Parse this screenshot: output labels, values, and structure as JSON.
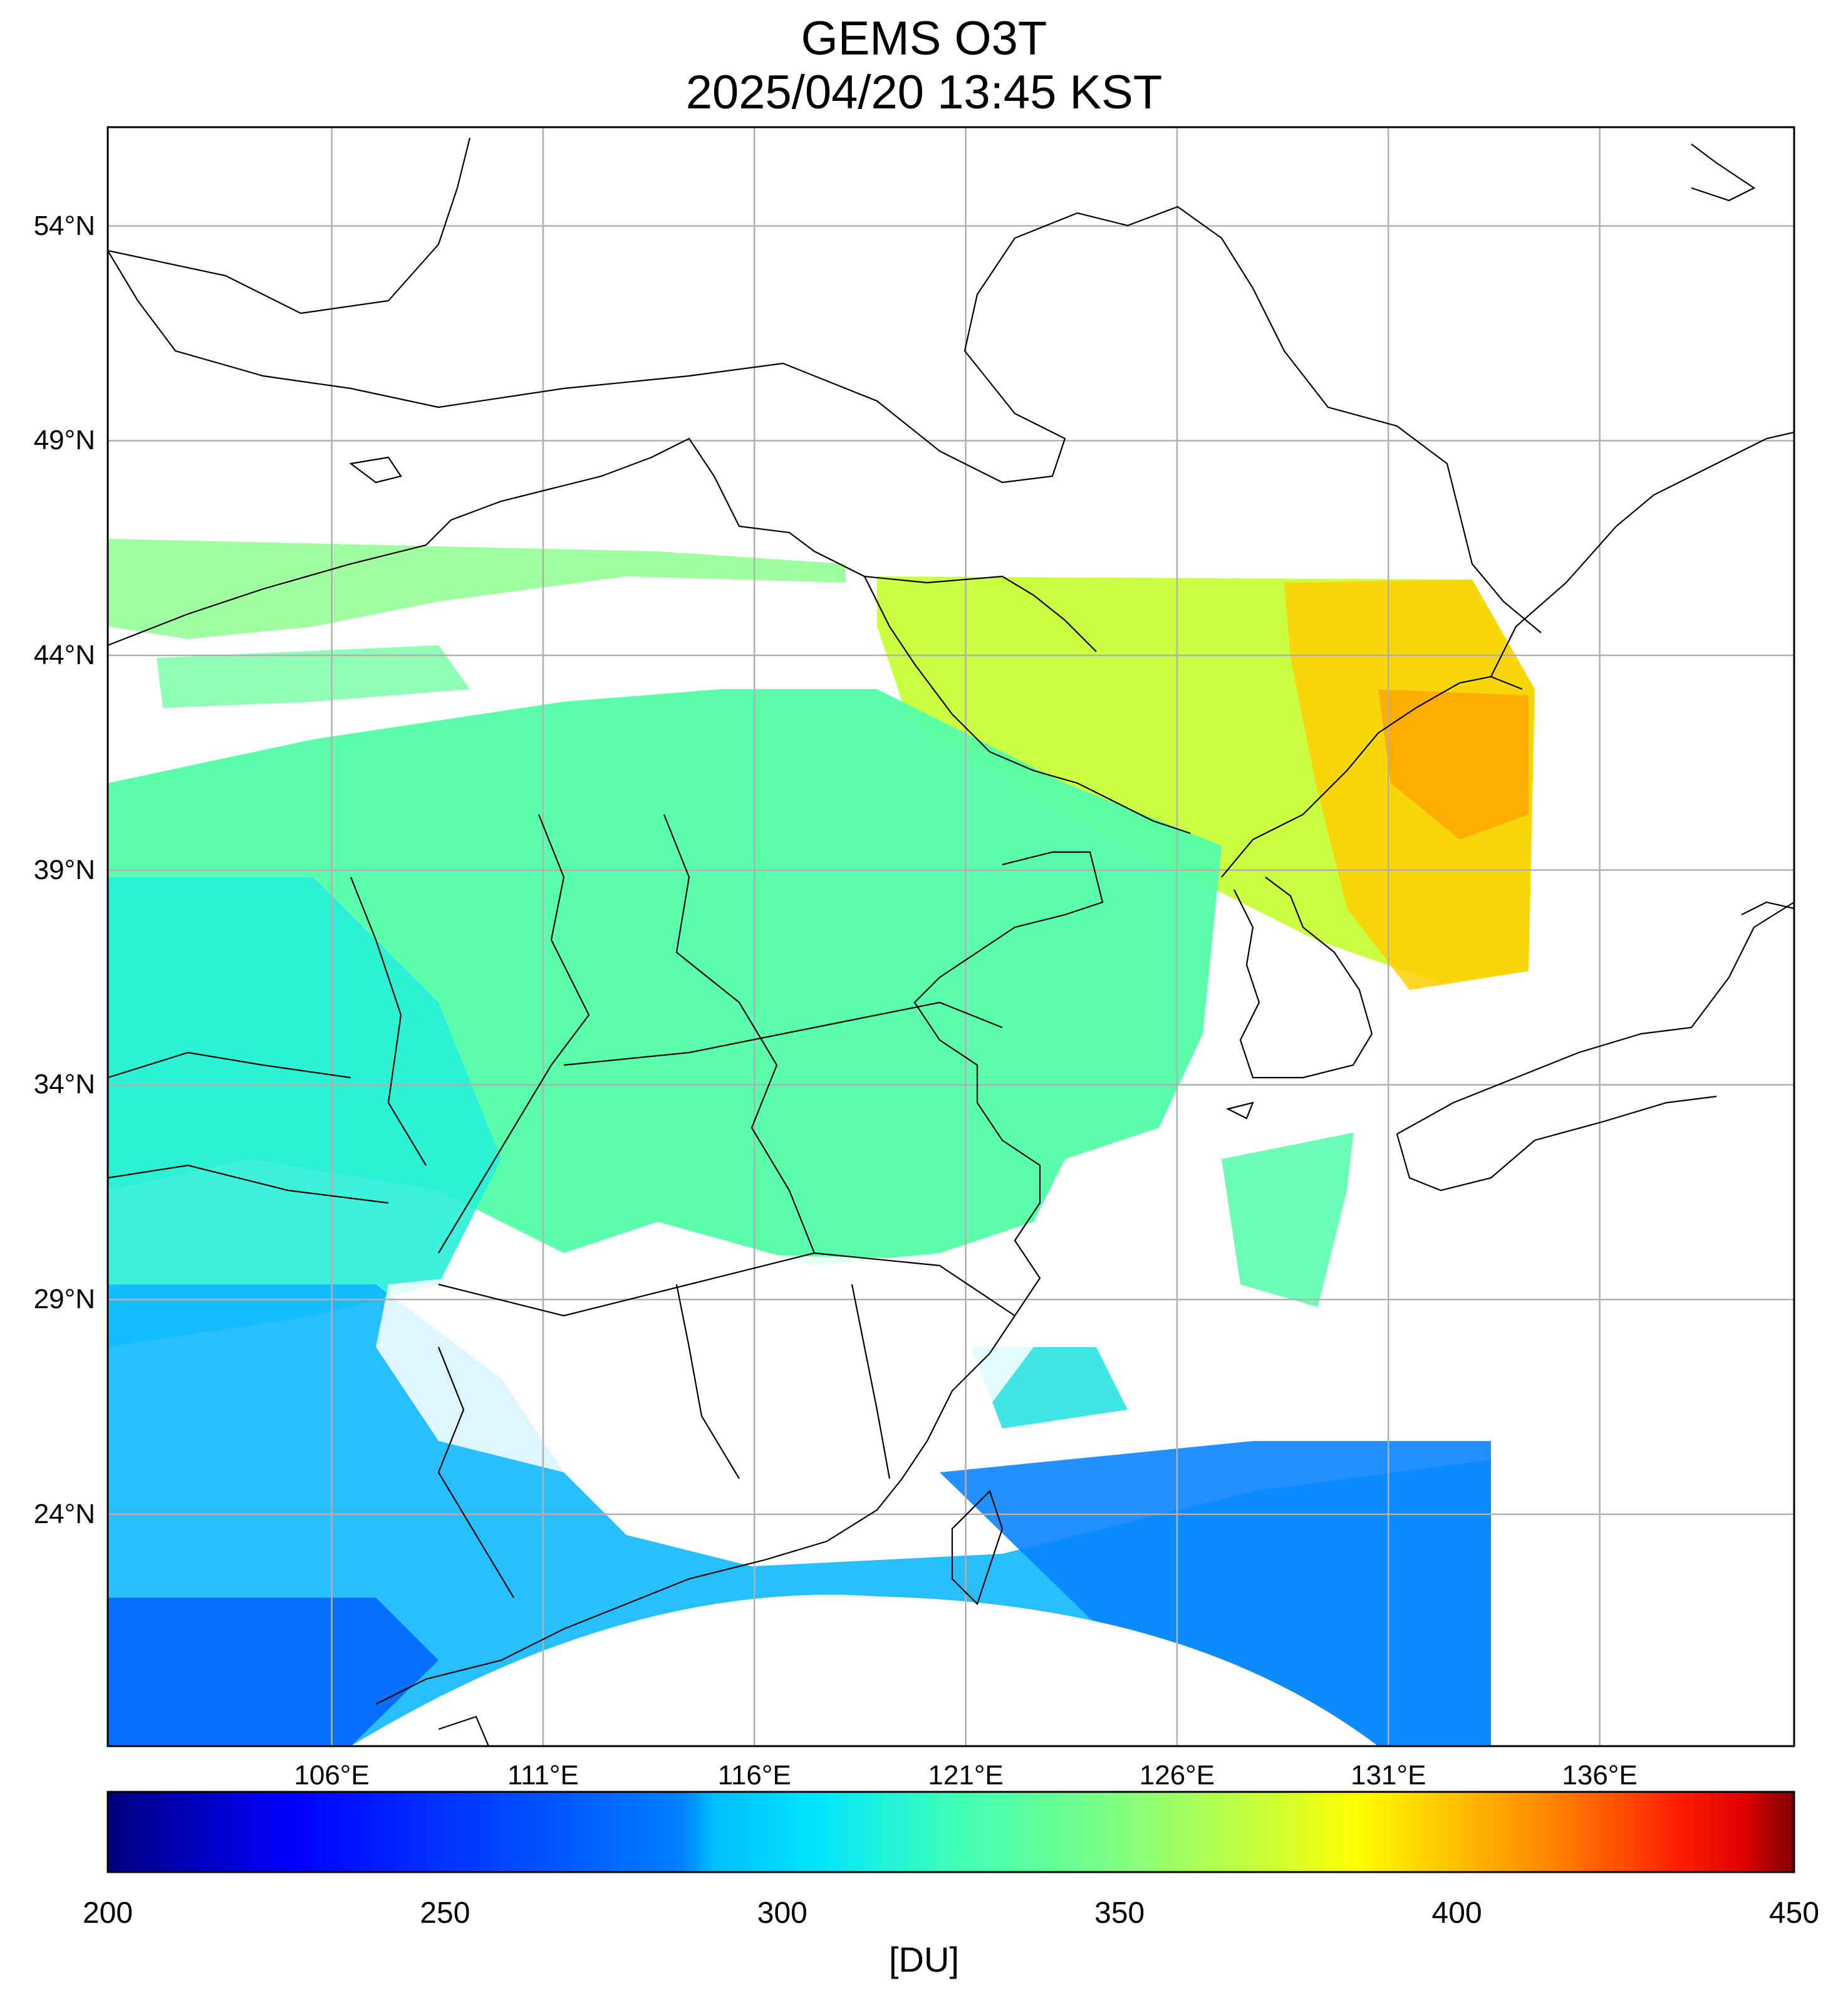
{
  "title": {
    "line1": "GEMS O3T",
    "line2": "2025/04/20 13:45 KST"
  },
  "map": {
    "lon_range": [
      100.7,
      140.6
    ],
    "lat_range": [
      18.6,
      56.3
    ],
    "lat_ticks": [
      {
        "value": 54,
        "label": "54°N"
      },
      {
        "value": 49,
        "label": "49°N"
      },
      {
        "value": 44,
        "label": "44°N"
      },
      {
        "value": 39,
        "label": "39°N"
      },
      {
        "value": 34,
        "label": "34°N"
      },
      {
        "value": 29,
        "label": "29°N"
      },
      {
        "value": 24,
        "label": "24°N"
      }
    ],
    "lon_ticks": [
      {
        "value": 106,
        "label": "106°E"
      },
      {
        "value": 111,
        "label": "111°E"
      },
      {
        "value": 116,
        "label": "116°E"
      },
      {
        "value": 121,
        "label": "121°E"
      },
      {
        "value": 126,
        "label": "126°E"
      },
      {
        "value": 131,
        "label": "131°E"
      },
      {
        "value": 136,
        "label": "136°E"
      }
    ],
    "grid": true,
    "frame_color": "#000000",
    "grid_color": "#b0b0b0",
    "border_color": "#000000"
  },
  "colorbar": {
    "min": 200,
    "max": 450,
    "colormap": "jet",
    "units": "[DU]",
    "tick_labels": [
      {
        "value": 200,
        "label": "200"
      },
      {
        "value": 250,
        "label": "250"
      },
      {
        "value": 300,
        "label": "300"
      },
      {
        "value": 350,
        "label": "350"
      },
      {
        "value": 400,
        "label": "400"
      },
      {
        "value": 450,
        "label": "450"
      }
    ],
    "stops": [
      {
        "offset": 0.0,
        "color": "#00007f"
      },
      {
        "offset": 0.11,
        "color": "#0000ff"
      },
      {
        "offset": 0.34,
        "color": "#0080ff"
      },
      {
        "offset": 0.36,
        "color": "#00bfff"
      },
      {
        "offset": 0.42,
        "color": "#00e5ff"
      },
      {
        "offset": 0.5,
        "color": "#3cffb8"
      },
      {
        "offset": 0.6,
        "color": "#80ff80"
      },
      {
        "offset": 0.7,
        "color": "#d6ff29"
      },
      {
        "offset": 0.74,
        "color": "#ffff00"
      },
      {
        "offset": 0.8,
        "color": "#ffbf00"
      },
      {
        "offset": 0.86,
        "color": "#ff8000"
      },
      {
        "offset": 0.93,
        "color": "#ff2000"
      },
      {
        "offset": 0.97,
        "color": "#e00000"
      },
      {
        "offset": 1.0,
        "color": "#7f0000"
      }
    ]
  }
}
